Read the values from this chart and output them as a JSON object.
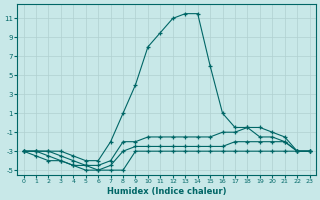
{
  "xlabel": "Humidex (Indice chaleur)",
  "background_color": "#c8e8e8",
  "grid_color": "#b0d0d0",
  "line_color": "#006666",
  "xlim": [
    -0.5,
    23.5
  ],
  "ylim": [
    -5.5,
    12.5
  ],
  "xticks": [
    0,
    1,
    2,
    3,
    4,
    5,
    6,
    7,
    8,
    9,
    10,
    11,
    12,
    13,
    14,
    15,
    16,
    17,
    18,
    19,
    20,
    21,
    22,
    23
  ],
  "yticks": [
    -5,
    -3,
    -1,
    1,
    3,
    5,
    7,
    9,
    11
  ],
  "lines": [
    {
      "x": [
        0,
        1,
        2,
        3,
        4,
        5,
        6,
        7,
        8,
        9,
        10,
        11,
        12,
        13,
        14,
        15,
        16,
        17,
        18,
        19,
        20,
        21,
        22,
        23
      ],
      "y": [
        -3,
        -3.5,
        -4,
        -4,
        -4.5,
        -5,
        -5,
        -5,
        -5,
        -3,
        -3,
        -3,
        -3,
        -3,
        -3,
        -3,
        -3,
        -3,
        -3,
        -3,
        -3,
        -3,
        -3,
        -3
      ]
    },
    {
      "x": [
        0,
        1,
        2,
        3,
        4,
        5,
        6,
        7,
        8,
        9,
        10,
        11,
        12,
        13,
        14,
        15,
        16,
        17,
        18,
        19,
        20,
        21,
        22,
        23
      ],
      "y": [
        -3,
        -3,
        -3.5,
        -4,
        -4.5,
        -4.5,
        -5,
        -4.5,
        -3,
        -2.5,
        -2.5,
        -2.5,
        -2.5,
        -2.5,
        -2.5,
        -2.5,
        -2.5,
        -2,
        -2,
        -2,
        -2,
        -2,
        -3,
        -3
      ]
    },
    {
      "x": [
        0,
        1,
        2,
        3,
        4,
        5,
        6,
        7,
        8,
        9,
        10,
        11,
        12,
        13,
        14,
        15,
        16,
        17,
        18,
        19,
        20,
        21,
        22,
        23
      ],
      "y": [
        -3,
        -3,
        -3,
        -3.5,
        -4,
        -4.5,
        -4.5,
        -4,
        -2,
        -2,
        -1.5,
        -1.5,
        -1.5,
        -1.5,
        -1.5,
        -1.5,
        -1,
        -1,
        -0.5,
        -0.5,
        -1,
        -1.5,
        -3,
        -3
      ]
    },
    {
      "x": [
        0,
        1,
        2,
        3,
        4,
        5,
        6,
        7,
        8,
        9,
        10,
        11,
        12,
        13,
        14,
        15,
        16,
        17,
        18,
        19,
        20,
        21,
        22,
        23
      ],
      "y": [
        -3,
        -3,
        -3,
        -3,
        -3.5,
        -4,
        -4,
        -2,
        1,
        4,
        8,
        9.5,
        11,
        11.5,
        11.5,
        6,
        1,
        -0.5,
        -0.5,
        -1.5,
        -1.5,
        -2,
        -3,
        -3
      ]
    }
  ]
}
